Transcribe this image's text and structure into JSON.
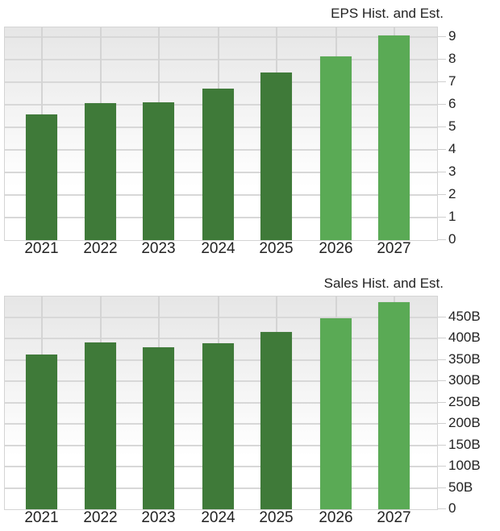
{
  "colors": {
    "historical": "#3f7a39",
    "estimate": "#5aaa55",
    "grid": "#d8d8d8"
  },
  "eps": {
    "title": "EPS Hist. and Est.",
    "y_ticks": [
      "0",
      "1",
      "2",
      "3",
      "4",
      "5",
      "6",
      "7",
      "8",
      "9"
    ],
    "x_labels": [
      "2021",
      "2022",
      "2023",
      "2024",
      "2025",
      "2026",
      "2027"
    ]
  },
  "sales": {
    "title": "Sales Hist. and Est.",
    "y_ticks": [
      "0",
      "50B",
      "100B",
      "150B",
      "200B",
      "250B",
      "300B",
      "350B",
      "400B",
      "450B"
    ],
    "x_labels": [
      "2021",
      "2022",
      "2023",
      "2024",
      "2025",
      "2026",
      "2027"
    ]
  },
  "chart_data": [
    {
      "type": "bar",
      "title": "EPS Hist. and Est.",
      "categories": [
        "2021",
        "2022",
        "2023",
        "2024",
        "2025",
        "2026",
        "2027"
      ],
      "values": [
        5.57,
        6.07,
        6.11,
        6.72,
        7.44,
        8.15,
        9.08
      ],
      "series_kind": [
        "historical",
        "historical",
        "historical",
        "historical",
        "historical",
        "estimate",
        "estimate"
      ],
      "xlabel": "",
      "ylabel": "",
      "ylim": [
        0,
        9.4
      ],
      "y_ticks": [
        0,
        1,
        2,
        3,
        4,
        5,
        6,
        7,
        8,
        9
      ],
      "y_axis_position": "right",
      "grid": true,
      "legend": "none"
    },
    {
      "type": "bar",
      "title": "Sales Hist. and Est.",
      "categories": [
        "2021",
        "2022",
        "2023",
        "2024",
        "2025",
        "2026",
        "2027"
      ],
      "values": [
        363,
        391,
        380,
        389,
        416,
        448,
        486
      ],
      "units": "B (billions)",
      "series_kind": [
        "historical",
        "historical",
        "historical",
        "historical",
        "historical",
        "estimate",
        "estimate"
      ],
      "xlabel": "",
      "ylabel": "",
      "ylim": [
        0,
        496
      ],
      "y_ticks": [
        0,
        50,
        100,
        150,
        200,
        250,
        300,
        350,
        400,
        450
      ],
      "y_tick_labels": [
        "0",
        "50B",
        "100B",
        "150B",
        "200B",
        "250B",
        "300B",
        "350B",
        "400B",
        "450B"
      ],
      "y_axis_position": "right",
      "grid": true,
      "legend": "none"
    }
  ]
}
